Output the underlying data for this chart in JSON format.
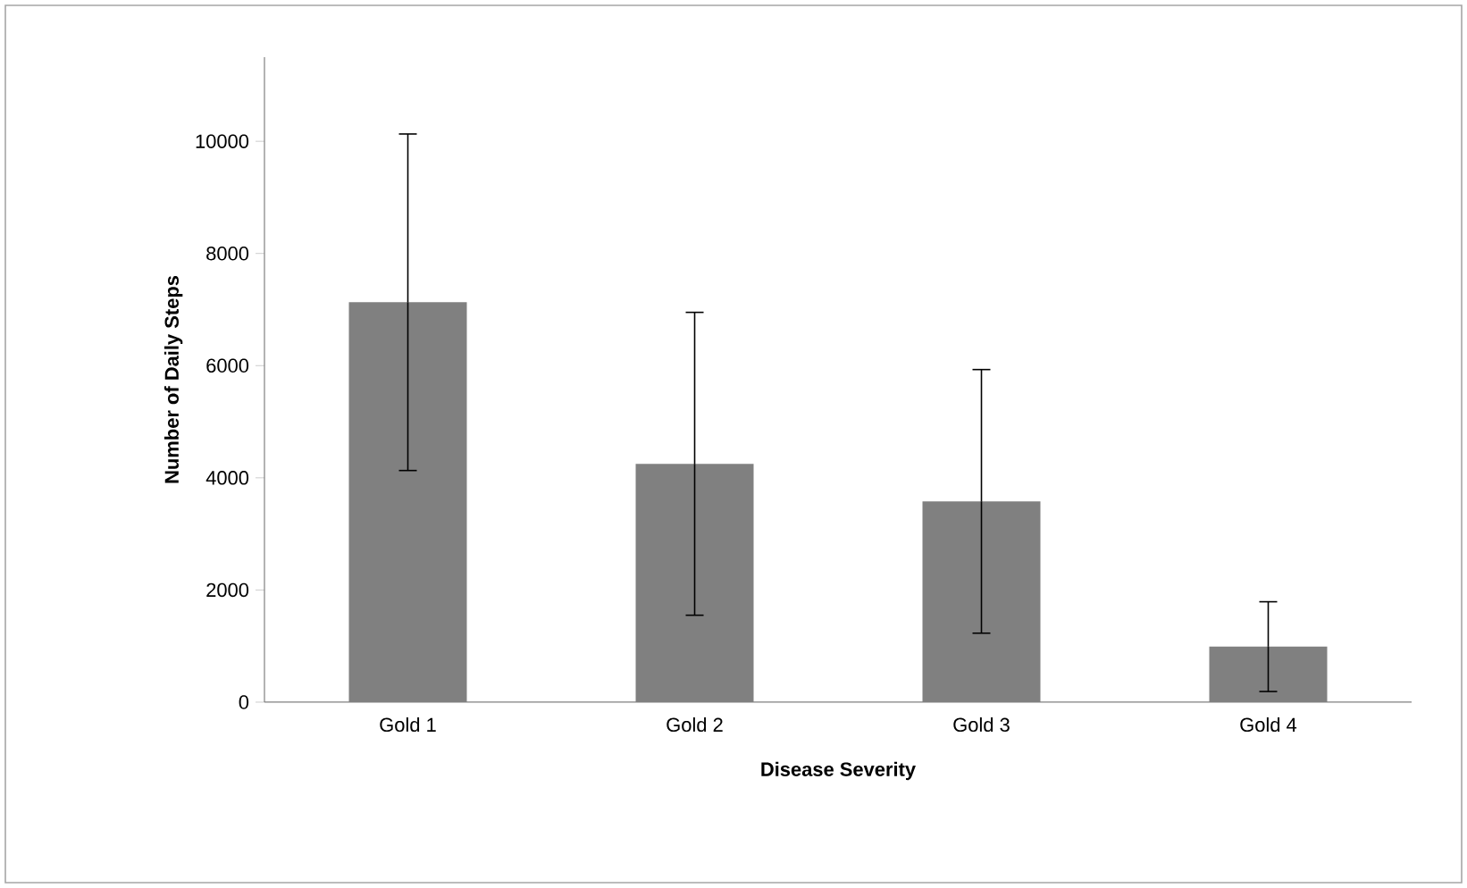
{
  "chart_data": {
    "type": "bar",
    "xlabel": "Disease Severity",
    "ylabel": "Number of Daily Steps",
    "categories": [
      "Gold 1",
      "Gold 2",
      "Gold 3",
      "Gold 4"
    ],
    "values": [
      7130,
      4250,
      3580,
      990
    ],
    "errors": [
      3000,
      2700,
      2350,
      800
    ],
    "color": "#808080",
    "ylim": [
      0,
      11500
    ],
    "yticks": [
      0,
      2000,
      4000,
      6000,
      8000,
      10000
    ]
  }
}
